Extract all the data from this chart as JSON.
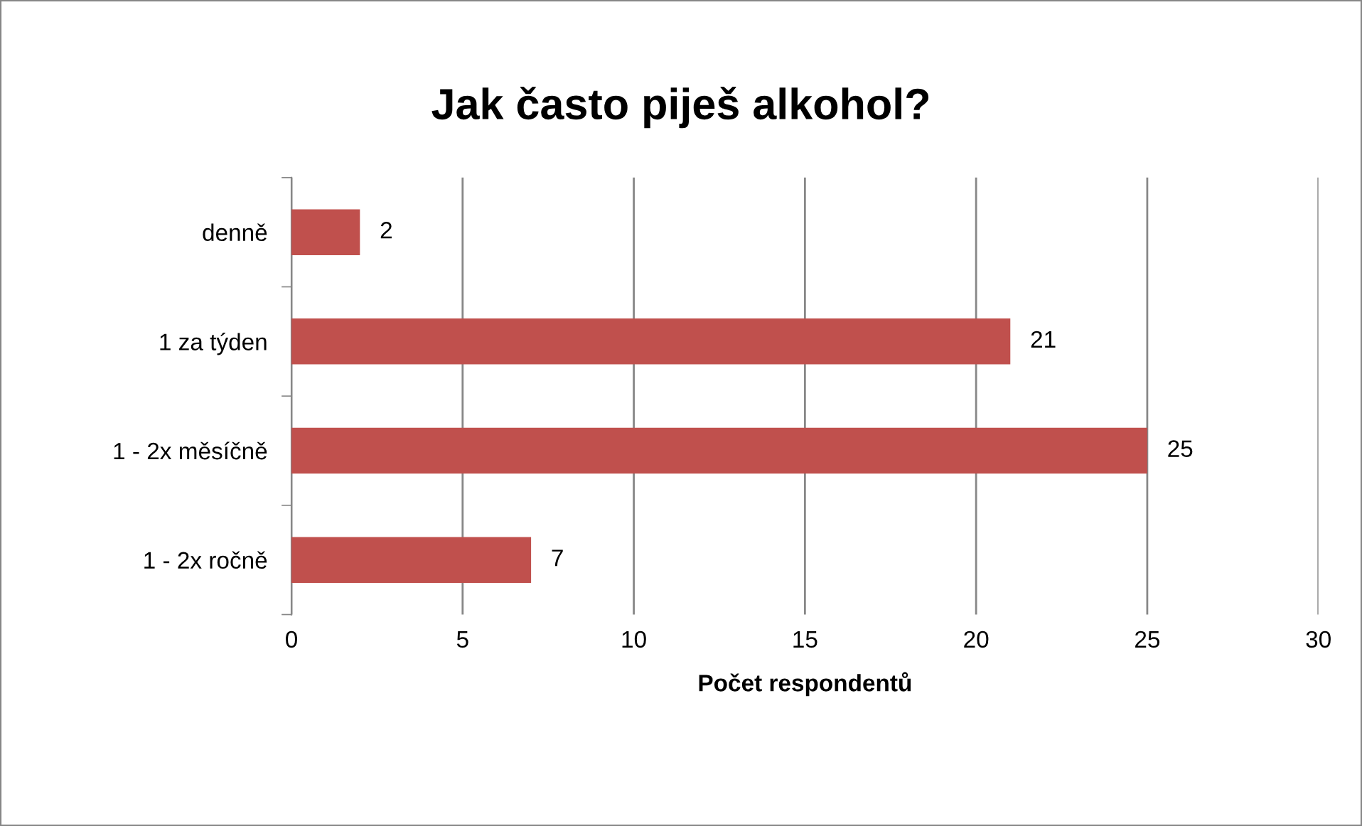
{
  "chart_data": {
    "type": "bar",
    "orientation": "horizontal",
    "title": "Jak často piješ alkohol?",
    "xlabel": "Počet respondentů",
    "categories": [
      "denně",
      "1 za týden",
      "1 - 2x měsíčně",
      "1 - 2x ročně"
    ],
    "values": [
      2,
      21,
      25,
      7
    ],
    "color": "#c0504d",
    "xlim": [
      0,
      30
    ],
    "xticks": [
      0,
      5,
      10,
      15,
      20,
      25,
      30
    ],
    "grid": "x",
    "data_labels": true,
    "legend": false
  }
}
